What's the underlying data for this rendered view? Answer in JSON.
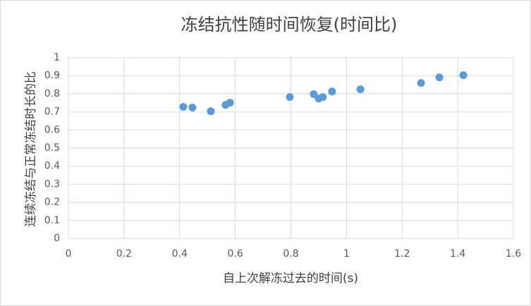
{
  "chart_data": {
    "type": "scatter",
    "title": "冻结抗性随时间恢复(时间比)",
    "x_label": "自上次解冻过去的时间(s)",
    "y_label": "连续冻结与正常冻结时长的比",
    "x": [
      0.413,
      0.446,
      0.512,
      0.565,
      0.581,
      0.796,
      0.882,
      0.9,
      0.915,
      0.948,
      1.05,
      1.268,
      1.334,
      1.42
    ],
    "values": [
      0.728,
      0.724,
      0.704,
      0.739,
      0.751,
      0.782,
      0.798,
      0.774,
      0.782,
      0.813,
      0.825,
      0.86,
      0.891,
      0.903
    ],
    "color": "#5b9bd5",
    "xlim": [
      0,
      1.6
    ],
    "xticks": [
      0,
      0.2,
      0.4,
      0.6,
      0.8,
      1,
      1.2,
      1.4,
      1.6
    ],
    "ylim": [
      0,
      1
    ],
    "yticks": [
      0,
      0.1,
      0.2,
      0.3,
      0.4,
      0.5,
      0.6,
      0.7,
      0.8,
      0.9,
      1
    ],
    "grid": true
  }
}
